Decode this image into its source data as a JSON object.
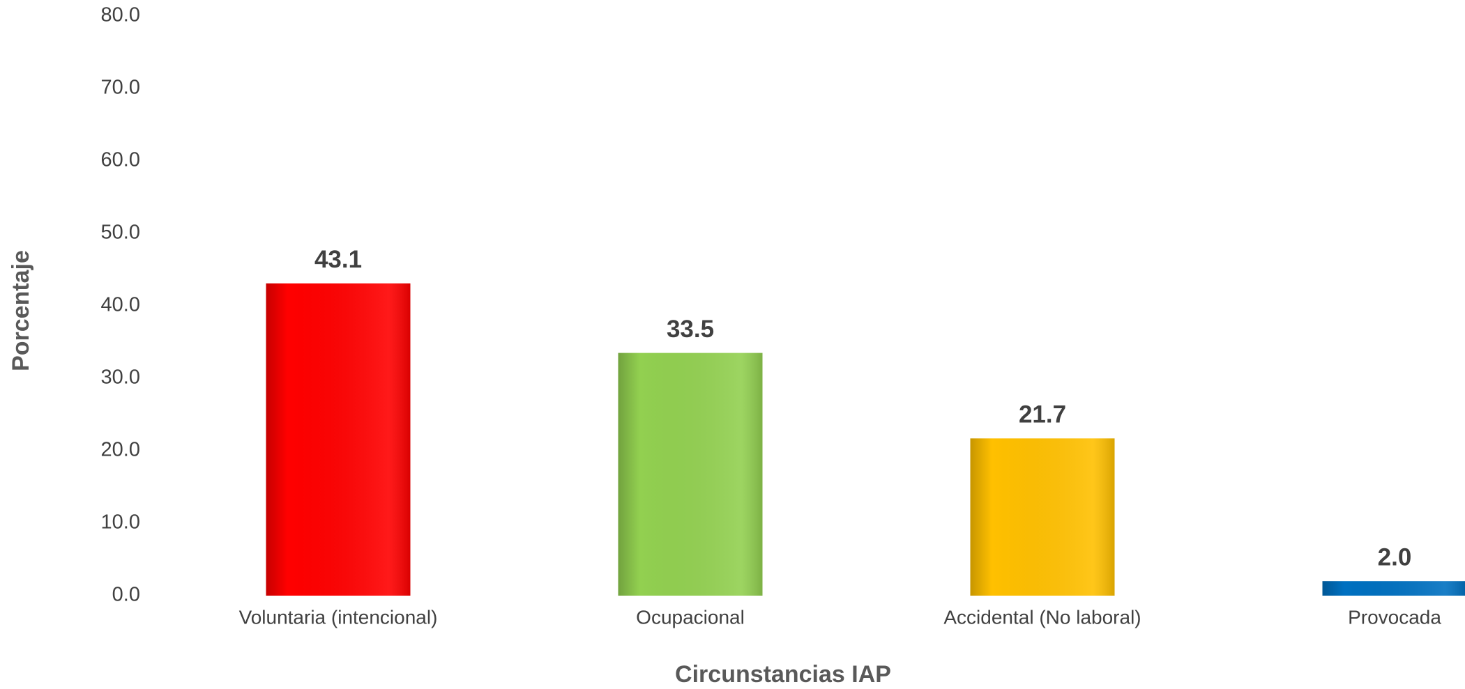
{
  "chart_data": {
    "type": "bar",
    "x_label": "Circunstancias IAP",
    "y_label": "Porcentaje",
    "categories": [
      "Voluntaria (intencional)",
      "Ocupacional",
      "Accidental (No laboral)",
      "Provocada"
    ],
    "values": [
      43.1,
      33.5,
      21.7,
      2.0
    ],
    "value_labels": [
      "43.1",
      "33.5",
      "21.7",
      "2.0"
    ],
    "colors": [
      "#ff0000",
      "#92d050",
      "#ffc000",
      "#0070c0"
    ],
    "ylim": [
      0,
      80
    ],
    "yticks": [
      {
        "value": 0,
        "label": "0.0"
      },
      {
        "value": 10,
        "label": "10.0"
      },
      {
        "value": 20,
        "label": "20.0"
      },
      {
        "value": 30,
        "label": "30.0"
      },
      {
        "value": 40,
        "label": "40.0"
      },
      {
        "value": 50,
        "label": "50.0"
      },
      {
        "value": 60,
        "label": "60.0"
      },
      {
        "value": 70,
        "label": "70.0"
      },
      {
        "value": 80,
        "label": "80.0"
      }
    ],
    "grid": false
  }
}
